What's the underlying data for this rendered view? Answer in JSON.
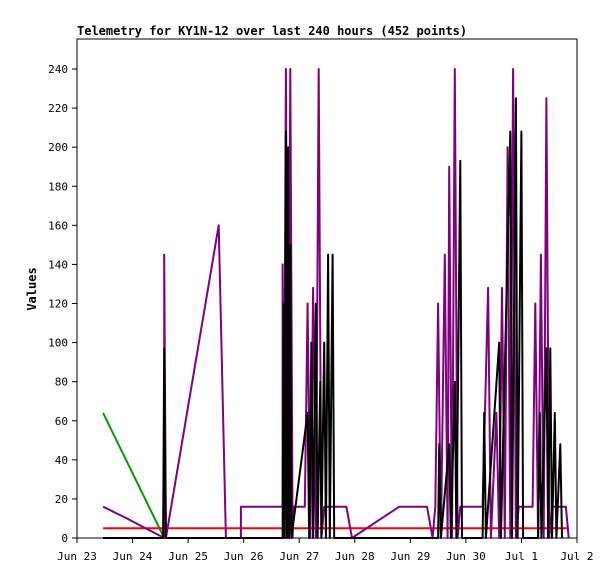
{
  "chart_data": {
    "type": "line",
    "title": "Telemetry for KY1N-12 over last 240 hours (452 points)",
    "xlabel": "",
    "ylabel": "Values",
    "x_ticks": [
      "Jun 23",
      "Jun 24",
      "Jun 25",
      "Jun 26",
      "Jun 27",
      "Jun 28",
      "Jun 29",
      "Jun 30",
      "Jul 1",
      "Jul 2"
    ],
    "x_range_days": [
      0,
      9
    ],
    "ylim": [
      0,
      250
    ],
    "y_ticks": [
      0,
      20,
      40,
      60,
      80,
      100,
      120,
      140,
      160,
      180,
      200,
      220,
      240
    ],
    "grid": false,
    "legend": "none",
    "series": [
      {
        "color": "#00a000",
        "points": [
          [
            0.47,
            64
          ],
          [
            1.57,
            0
          ]
        ]
      },
      {
        "color": "#ff0000",
        "points": [
          [
            0.47,
            5
          ],
          [
            8.85,
            5
          ]
        ]
      },
      {
        "color": "#800080",
        "points": [
          [
            0.47,
            16
          ],
          [
            0.9,
            10
          ],
          [
            1.57,
            0
          ],
          [
            1.57,
            145
          ],
          [
            1.6,
            0
          ],
          [
            2.55,
            160
          ],
          [
            2.68,
            0
          ],
          [
            2.95,
            0
          ],
          [
            2.95,
            16
          ],
          [
            3.7,
            16
          ],
          [
            3.7,
            140
          ],
          [
            3.72,
            0
          ],
          [
            3.76,
            240
          ],
          [
            3.8,
            0
          ],
          [
            3.84,
            240
          ],
          [
            3.88,
            0
          ],
          [
            3.9,
            16
          ],
          [
            4.1,
            16
          ],
          [
            4.15,
            120
          ],
          [
            4.2,
            0
          ],
          [
            4.25,
            128
          ],
          [
            4.3,
            0
          ],
          [
            4.35,
            240
          ],
          [
            4.4,
            0
          ],
          [
            4.45,
            16
          ],
          [
            4.85,
            16
          ],
          [
            4.95,
            0
          ],
          [
            5.8,
            16
          ],
          [
            6.3,
            16
          ],
          [
            6.4,
            0
          ],
          [
            6.45,
            16
          ],
          [
            6.5,
            120
          ],
          [
            6.55,
            0
          ],
          [
            6.62,
            145
          ],
          [
            6.67,
            0
          ],
          [
            6.7,
            190
          ],
          [
            6.75,
            0
          ],
          [
            6.8,
            240
          ],
          [
            6.85,
            0
          ],
          [
            6.9,
            16
          ],
          [
            7.3,
            16
          ],
          [
            7.4,
            128
          ],
          [
            7.45,
            0
          ],
          [
            7.55,
            64
          ],
          [
            7.6,
            0
          ],
          [
            7.65,
            128
          ],
          [
            7.7,
            0
          ],
          [
            7.75,
            200
          ],
          [
            7.8,
            0
          ],
          [
            7.85,
            240
          ],
          [
            7.9,
            0
          ],
          [
            7.95,
            16
          ],
          [
            8.2,
            16
          ],
          [
            8.25,
            120
          ],
          [
            8.3,
            0
          ],
          [
            8.35,
            145
          ],
          [
            8.4,
            0
          ],
          [
            8.45,
            225
          ],
          [
            8.5,
            0
          ],
          [
            8.55,
            16
          ],
          [
            8.8,
            16
          ],
          [
            8.85,
            0
          ]
        ]
      },
      {
        "color": "#000000",
        "points": [
          [
            0.47,
            0
          ],
          [
            1.55,
            0
          ],
          [
            1.57,
            97
          ],
          [
            1.6,
            0
          ],
          [
            3.7,
            0
          ],
          [
            3.72,
            120
          ],
          [
            3.74,
            0
          ],
          [
            3.76,
            208
          ],
          [
            3.78,
            0
          ],
          [
            3.8,
            200
          ],
          [
            3.82,
            0
          ],
          [
            3.84,
            150
          ],
          [
            3.86,
            0
          ],
          [
            4.15,
            64
          ],
          [
            4.18,
            0
          ],
          [
            4.22,
            100
          ],
          [
            4.25,
            0
          ],
          [
            4.3,
            120
          ],
          [
            4.33,
            0
          ],
          [
            4.38,
            80
          ],
          [
            4.4,
            0
          ],
          [
            4.45,
            100
          ],
          [
            4.48,
            0
          ],
          [
            4.52,
            145
          ],
          [
            4.55,
            0
          ],
          [
            4.6,
            145
          ],
          [
            4.63,
            0
          ],
          [
            6.5,
            0
          ],
          [
            6.52,
            48
          ],
          [
            6.55,
            0
          ],
          [
            6.7,
            48
          ],
          [
            6.73,
            0
          ],
          [
            6.8,
            80
          ],
          [
            6.83,
            0
          ],
          [
            6.9,
            193
          ],
          [
            6.93,
            0
          ],
          [
            7.3,
            0
          ],
          [
            7.33,
            64
          ],
          [
            7.36,
            0
          ],
          [
            7.6,
            100
          ],
          [
            7.63,
            0
          ],
          [
            7.8,
            208
          ],
          [
            7.83,
            0
          ],
          [
            7.9,
            225
          ],
          [
            7.93,
            0
          ],
          [
            8.0,
            208
          ],
          [
            8.03,
            0
          ],
          [
            8.3,
            0
          ],
          [
            8.33,
            64
          ],
          [
            8.36,
            0
          ],
          [
            8.45,
            97
          ],
          [
            8.48,
            0
          ],
          [
            8.52,
            97
          ],
          [
            8.55,
            0
          ],
          [
            8.6,
            64
          ],
          [
            8.63,
            0
          ],
          [
            8.7,
            48
          ],
          [
            8.73,
            0
          ]
        ]
      }
    ]
  }
}
